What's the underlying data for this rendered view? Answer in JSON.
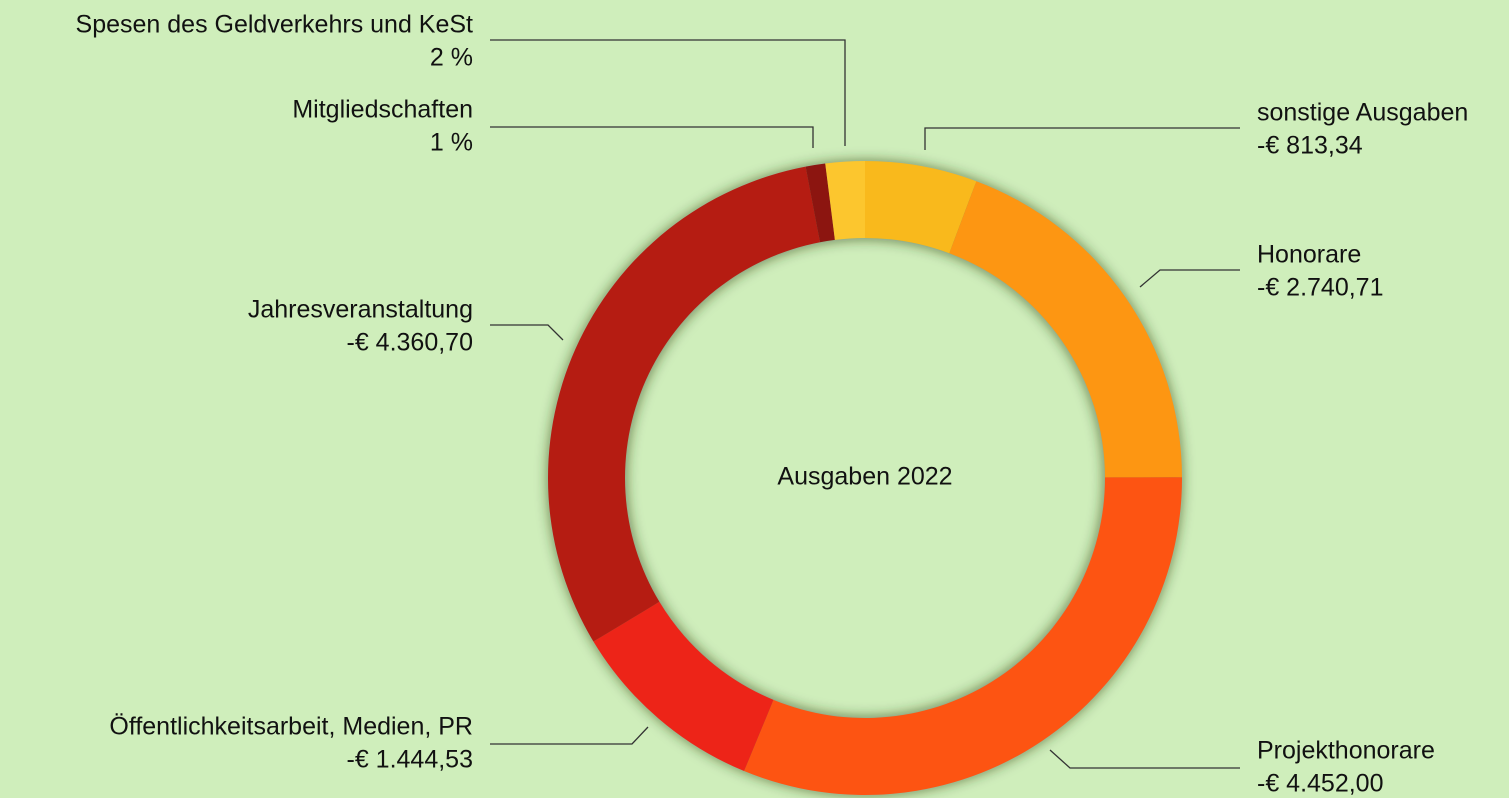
{
  "chart_data": {
    "type": "donut",
    "title": "Ausgaben 2022",
    "categories": [
      "sonstige Ausgaben",
      "Honorare",
      "Projekthonorare",
      "Öffentlichkeitsarbeit, Medien, PR",
      "Jahresveranstaltung",
      "Mitgliedschaften",
      "Spesen des Geldverkehrs und KeSt"
    ],
    "values": [
      -813.34,
      -2740.71,
      -4452.0,
      -1444.53,
      -4360.7,
      -142,
      -285
    ],
    "value_labels": [
      "-€ 813,34",
      "-€ 2.740,71",
      "-€ 4.452,00",
      "-€ 1.444,53",
      "-€ 4.360,70",
      "1 %",
      "2 %"
    ],
    "colors": [
      "#f9b91c",
      "#fd9612",
      "#fd5412",
      "#ed2418",
      "#b51c12",
      "#8c1510",
      "#fcc62e"
    ]
  }
}
